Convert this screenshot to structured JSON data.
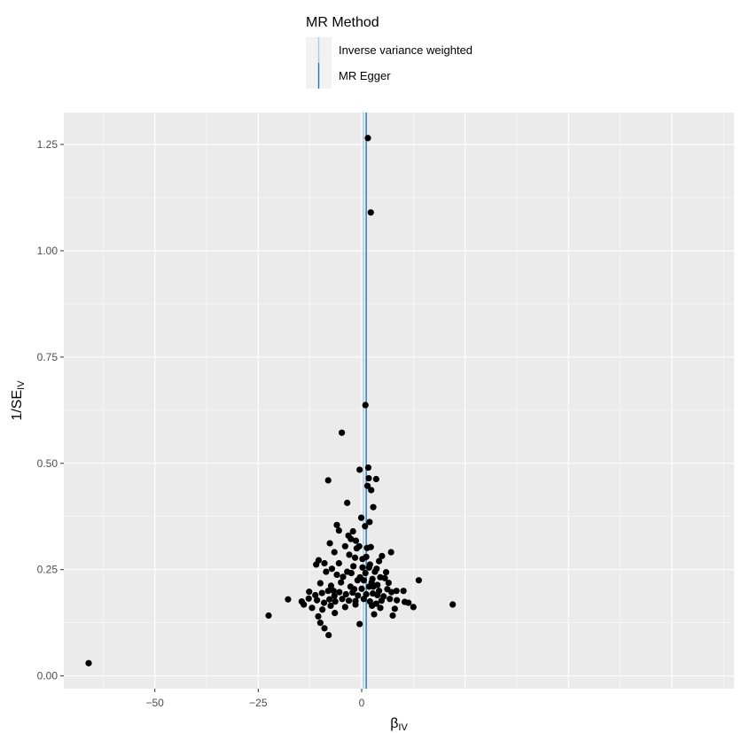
{
  "chart_data": {
    "type": "scatter",
    "title": "",
    "xlabel": "β",
    "xlabel_sub": "IV",
    "ylabel": "1/SE",
    "ylabel_sub": "IV",
    "xlim": [
      -72,
      90
    ],
    "ylim": [
      -0.03,
      1.325
    ],
    "x_ticks": [
      -50,
      -25,
      0
    ],
    "x_tick_labels": [
      "−50",
      "−25",
      "0"
    ],
    "y_ticks": [
      0.0,
      0.25,
      0.5,
      0.75,
      1.0,
      1.25
    ],
    "y_tick_labels": [
      "0.00",
      "0.25",
      "0.50",
      "0.75",
      "1.00",
      "1.25"
    ],
    "grid": true,
    "panel_color": "#ebebeb",
    "point_color": "#000000",
    "legend": {
      "title": "MR Method",
      "position": "top",
      "entries": [
        {
          "name": "Inverse variance weighted",
          "color": "#a6cee3"
        },
        {
          "name": "MR Egger",
          "color": "#1f78b4"
        }
      ]
    },
    "lines": [
      {
        "name": "Inverse variance weighted",
        "x": 0.4,
        "color": "#a6cee3"
      },
      {
        "name": "MR Egger",
        "x": 1.1,
        "color": "#1f78b4"
      }
    ],
    "points": [
      [
        -66.0,
        0.03
      ],
      [
        1.5,
        1.265
      ],
      [
        2.2,
        1.09
      ],
      [
        0.9,
        0.637
      ],
      [
        -4.8,
        0.572
      ],
      [
        -0.5,
        0.485
      ],
      [
        1.6,
        0.49
      ],
      [
        1.7,
        0.465
      ],
      [
        1.4,
        0.447
      ],
      [
        3.5,
        0.463
      ],
      [
        2.3,
        0.437
      ],
      [
        -8.1,
        0.46
      ],
      [
        -3.5,
        0.407
      ],
      [
        2.8,
        0.397
      ],
      [
        -0.1,
        0.372
      ],
      [
        -2.1,
        0.34
      ],
      [
        0.8,
        0.352
      ],
      [
        1.9,
        0.362
      ],
      [
        -6.0,
        0.355
      ],
      [
        -5.5,
        0.342
      ],
      [
        -3.2,
        0.33
      ],
      [
        -2.6,
        0.322
      ],
      [
        -1.4,
        0.318
      ],
      [
        -7.7,
        0.312
      ],
      [
        -4.0,
        0.305
      ],
      [
        -0.6,
        0.305
      ],
      [
        1.3,
        0.301
      ],
      [
        2.2,
        0.303
      ],
      [
        -6.6,
        0.291
      ],
      [
        -9.0,
        0.265
      ],
      [
        -7.2,
        0.252
      ],
      [
        -5.5,
        0.265
      ],
      [
        -3.0,
        0.285
      ],
      [
        -1.6,
        0.278
      ],
      [
        0.2,
        0.275
      ],
      [
        1.1,
        0.28
      ],
      [
        2.0,
        0.262
      ],
      [
        3.6,
        0.252
      ],
      [
        4.2,
        0.27
      ],
      [
        4.9,
        0.282
      ],
      [
        7.1,
        0.291
      ],
      [
        -10.4,
        0.272
      ],
      [
        -11.0,
        0.262
      ],
      [
        -8.6,
        0.245
      ],
      [
        -6.0,
        0.238
      ],
      [
        -4.5,
        0.233
      ],
      [
        -2.5,
        0.242
      ],
      [
        -0.4,
        0.232
      ],
      [
        0.9,
        0.242
      ],
      [
        2.6,
        0.228
      ],
      [
        3.2,
        0.245
      ],
      [
        5.6,
        0.23
      ],
      [
        6.5,
        0.219
      ],
      [
        -10.0,
        0.218
      ],
      [
        -7.4,
        0.212
      ],
      [
        -5.0,
        0.22
      ],
      [
        -2.7,
        0.21
      ],
      [
        -1.8,
        0.204
      ],
      [
        0.0,
        0.205
      ],
      [
        1.8,
        0.21
      ],
      [
        2.4,
        0.22
      ],
      [
        3.8,
        0.214
      ],
      [
        6.2,
        0.204
      ],
      [
        -12.7,
        0.198
      ],
      [
        -11.2,
        0.19
      ],
      [
        -9.6,
        0.195
      ],
      [
        -8.1,
        0.2
      ],
      [
        -6.6,
        0.188
      ],
      [
        -5.4,
        0.197
      ],
      [
        -3.8,
        0.192
      ],
      [
        -2.2,
        0.196
      ],
      [
        -0.9,
        0.189
      ],
      [
        1.1,
        0.192
      ],
      [
        2.7,
        0.194
      ],
      [
        4.2,
        0.2
      ],
      [
        5.3,
        0.187
      ],
      [
        7.2,
        0.197
      ],
      [
        8.4,
        0.2
      ],
      [
        10.1,
        0.2
      ],
      [
        -14.5,
        0.175
      ],
      [
        -12.8,
        0.182
      ],
      [
        -10.8,
        0.178
      ],
      [
        -9.1,
        0.172
      ],
      [
        -7.8,
        0.18
      ],
      [
        -6.4,
        0.175
      ],
      [
        -4.7,
        0.181
      ],
      [
        -3.1,
        0.177
      ],
      [
        -1.5,
        0.176
      ],
      [
        0.5,
        0.181
      ],
      [
        2.0,
        0.175
      ],
      [
        3.5,
        0.17
      ],
      [
        4.8,
        0.177
      ],
      [
        6.8,
        0.181
      ],
      [
        8.5,
        0.178
      ],
      [
        10.4,
        0.174
      ],
      [
        11.3,
        0.172
      ],
      [
        -17.8,
        0.18
      ],
      [
        -14.0,
        0.168
      ],
      [
        -12.0,
        0.16
      ],
      [
        -9.5,
        0.156
      ],
      [
        -7.5,
        0.165
      ],
      [
        -4.0,
        0.162
      ],
      [
        -1.5,
        0.168
      ],
      [
        2.5,
        0.165
      ],
      [
        4.5,
        0.16
      ],
      [
        8.0,
        0.158
      ],
      [
        12.5,
        0.162
      ],
      [
        22.0,
        0.168
      ],
      [
        13.8,
        0.225
      ],
      [
        -22.5,
        0.142
      ],
      [
        -10.5,
        0.14
      ],
      [
        -6.5,
        0.148
      ],
      [
        3.0,
        0.145
      ],
      [
        7.5,
        0.142
      ],
      [
        -10.0,
        0.125
      ],
      [
        -9.0,
        0.112
      ],
      [
        -0.5,
        0.122
      ],
      [
        -8.0,
        0.096
      ],
      [
        0.5,
        0.225
      ],
      [
        -3.5,
        0.245
      ],
      [
        -1.0,
        0.225
      ],
      [
        1.8,
        0.255
      ],
      [
        4.5,
        0.232
      ],
      [
        -2.0,
        0.258
      ],
      [
        3.8,
        0.19
      ],
      [
        -6.8,
        0.2
      ],
      [
        5.9,
        0.244
      ],
      [
        0.2,
        0.255
      ],
      [
        -1.2,
        0.3
      ],
      [
        2.8,
        0.21
      ]
    ]
  }
}
